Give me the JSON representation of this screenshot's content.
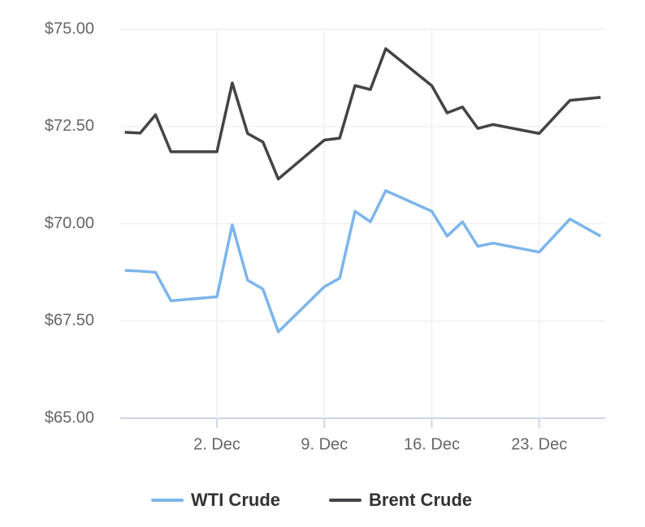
{
  "chart_data": {
    "type": "line",
    "x": [
      -4,
      -3,
      -2,
      -1,
      2,
      3,
      4,
      5,
      6,
      9,
      10,
      11,
      12,
      13,
      16,
      17,
      18,
      19,
      20,
      23,
      25,
      27
    ],
    "series": [
      {
        "name": "WTI Crude",
        "color": "#7cb5ec",
        "values": [
          68.8,
          68.78,
          68.75,
          68.02,
          68.12,
          69.97,
          68.55,
          68.32,
          67.22,
          68.38,
          68.6,
          70.32,
          70.05,
          70.85,
          70.32,
          69.68,
          70.05,
          69.42,
          69.5,
          69.27,
          70.12,
          69.68
        ]
      },
      {
        "name": "Brent Crude",
        "color": "#434348",
        "values": [
          72.35,
          72.33,
          72.8,
          71.85,
          71.85,
          73.62,
          72.32,
          72.1,
          71.15,
          72.15,
          72.2,
          73.55,
          73.45,
          74.5,
          73.55,
          72.85,
          73.0,
          72.45,
          72.55,
          72.32,
          73.17,
          73.25
        ]
      }
    ],
    "xlim": [
      -4.3,
      27.3
    ],
    "xticks": [
      {
        "value": 2,
        "label": "2. Dec"
      },
      {
        "value": 9,
        "label": "9. Dec"
      },
      {
        "value": 16,
        "label": "16. Dec"
      },
      {
        "value": 23,
        "label": "23. Dec"
      }
    ],
    "ylim": [
      65,
      75
    ],
    "yticks": [
      {
        "value": 65,
        "label": "$65.00"
      },
      {
        "value": 67.5,
        "label": "$67.50"
      },
      {
        "value": 70,
        "label": "$70.00"
      },
      {
        "value": 72.5,
        "label": "$72.50"
      },
      {
        "value": 75,
        "label": "$75.00"
      }
    ],
    "grid": true,
    "legend": "bottom"
  }
}
